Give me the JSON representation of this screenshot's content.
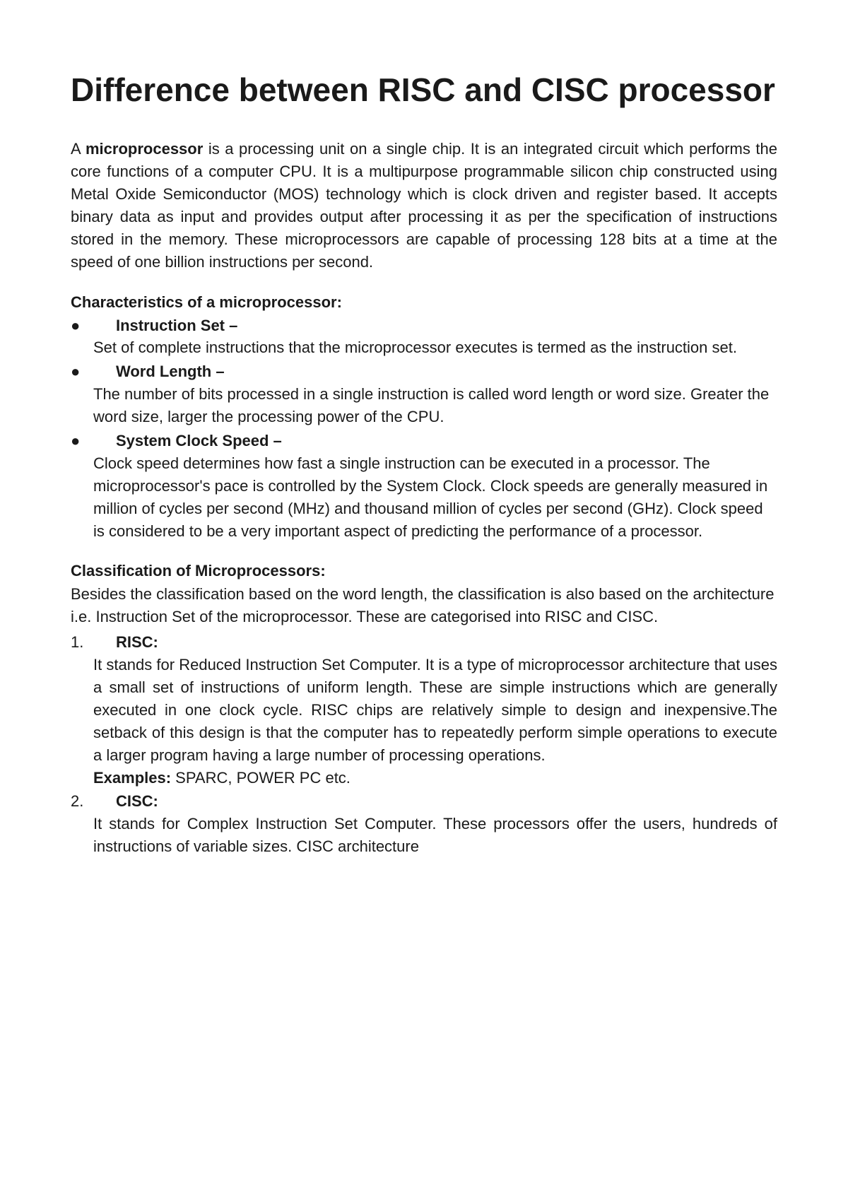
{
  "title": "Difference between RISC and CISC processor",
  "intro": {
    "prefix": "A ",
    "boldTerm": "microprocessor",
    "rest": " is a processing unit on a single chip. It is an integrated circuit which performs the core functions of a computer CPU. It is a multipurpose programmable silicon chip constructed using Metal Oxide Semiconductor (MOS) technology which is clock driven and register based. It accepts binary data as input and provides output after processing it as per the specification of instructions stored in the memory. These microprocessors are capable of processing 128 bits at a time at the speed of one billion instructions per second."
  },
  "characteristicsHeader": "Characteristics of a microprocessor:",
  "characteristics": [
    {
      "title": "Instruction Set –",
      "desc": "Set of complete instructions that the microprocessor executes is termed as the instruction set."
    },
    {
      "title": "Word Length –",
      "desc": "The number of bits processed in a single instruction is called word length or word size. Greater the word size, larger the processing power of the CPU."
    },
    {
      "title": "System Clock Speed –",
      "desc": "Clock speed determines how fast a single instruction can be executed in a processor. The microprocessor's pace is controlled by the System Clock. Clock speeds are generally measured in million of cycles per second (MHz) and thousand million of cycles per second (GHz). Clock speed is considered to be a very important aspect of predicting the performance of a processor."
    }
  ],
  "classificationHeader": "Classification of Microprocessors:",
  "classificationIntro": "Besides the classification based on the word length, the classification is also based on the architecture i.e. Instruction Set of the microprocessor. These are categorised into RISC and CISC.",
  "classifications": [
    {
      "num": "1.",
      "title": "RISC:",
      "desc": "It stands for Reduced Instruction Set Computer. It is a type of microprocessor architecture that uses a small set of instructions of uniform length. These are simple instructions which are generally executed in one clock cycle. RISC chips are relatively simple to design and inexpensive.The setback of this design is that the computer has to repeatedly perform simple operations to execute a larger program having a large number of processing operations.",
      "examplesLabel": "Examples:",
      "examples": " SPARC, POWER PC etc."
    },
    {
      "num": "2.",
      "title": "CISC:",
      "desc": "It stands for Complex Instruction Set Computer. These processors offer the users, hundreds of instructions of variable sizes. CISC architecture",
      "examplesLabel": "",
      "examples": ""
    }
  ],
  "styles": {
    "pageWidth": 1200,
    "pageHeight": 1698,
    "backgroundColor": "#ffffff",
    "textColor": "#1a1a1a",
    "fontFamily": "Arial",
    "titleFontSize": 46,
    "bodyFontSize": 22,
    "lineHeight": 1.45
  }
}
